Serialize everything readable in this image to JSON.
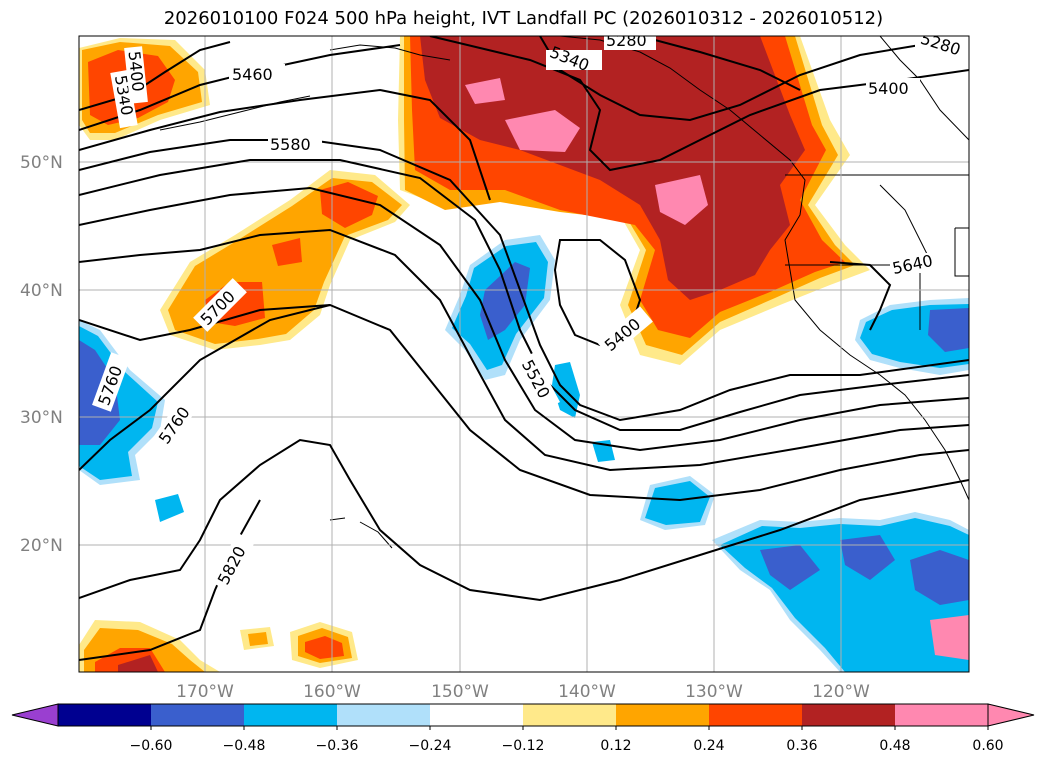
{
  "title": "2026010100 F024 500 hPa height, IVT Landfall PC (2026010312 - 2026010512)",
  "lat_labels": [
    "50°N",
    "40°N",
    "30°N",
    "20°N"
  ],
  "lon_labels": [
    "170°W",
    "160°W",
    "150°W",
    "140°W",
    "130°W",
    "120°W"
  ],
  "contour_labels": [
    "5280",
    "5340",
    "5400",
    "5460",
    "5580",
    "5640",
    "5700",
    "5760",
    "5820",
    "5520",
    "5400",
    "5340",
    "5400",
    "5760",
    "5280"
  ],
  "colorbar": {
    "ticks": [
      "−0.60",
      "−0.48",
      "−0.36",
      "−0.24",
      "−0.12",
      "0.12",
      "0.24",
      "0.36",
      "0.48",
      "0.60"
    ],
    "colors": [
      "#9a3fd0",
      "#000090",
      "#3a5fcd",
      "#00b6f0",
      "#b0e0fa",
      "#ffffff",
      "#ffe98a",
      "#ffa500",
      "#ff4500",
      "#b22222",
      "#ff88b0",
      "#ff88b0"
    ]
  },
  "palette": {
    "light_yellow": "#ffe98a",
    "orange": "#ffa500",
    "orange_red": "#ff4500",
    "dark_red": "#b22222",
    "pink": "#ff88b0",
    "light_blue": "#b0e0fa",
    "sky_blue": "#00b6f0",
    "royal_blue": "#3a5fcd",
    "grid": "#b0b0b0"
  }
}
